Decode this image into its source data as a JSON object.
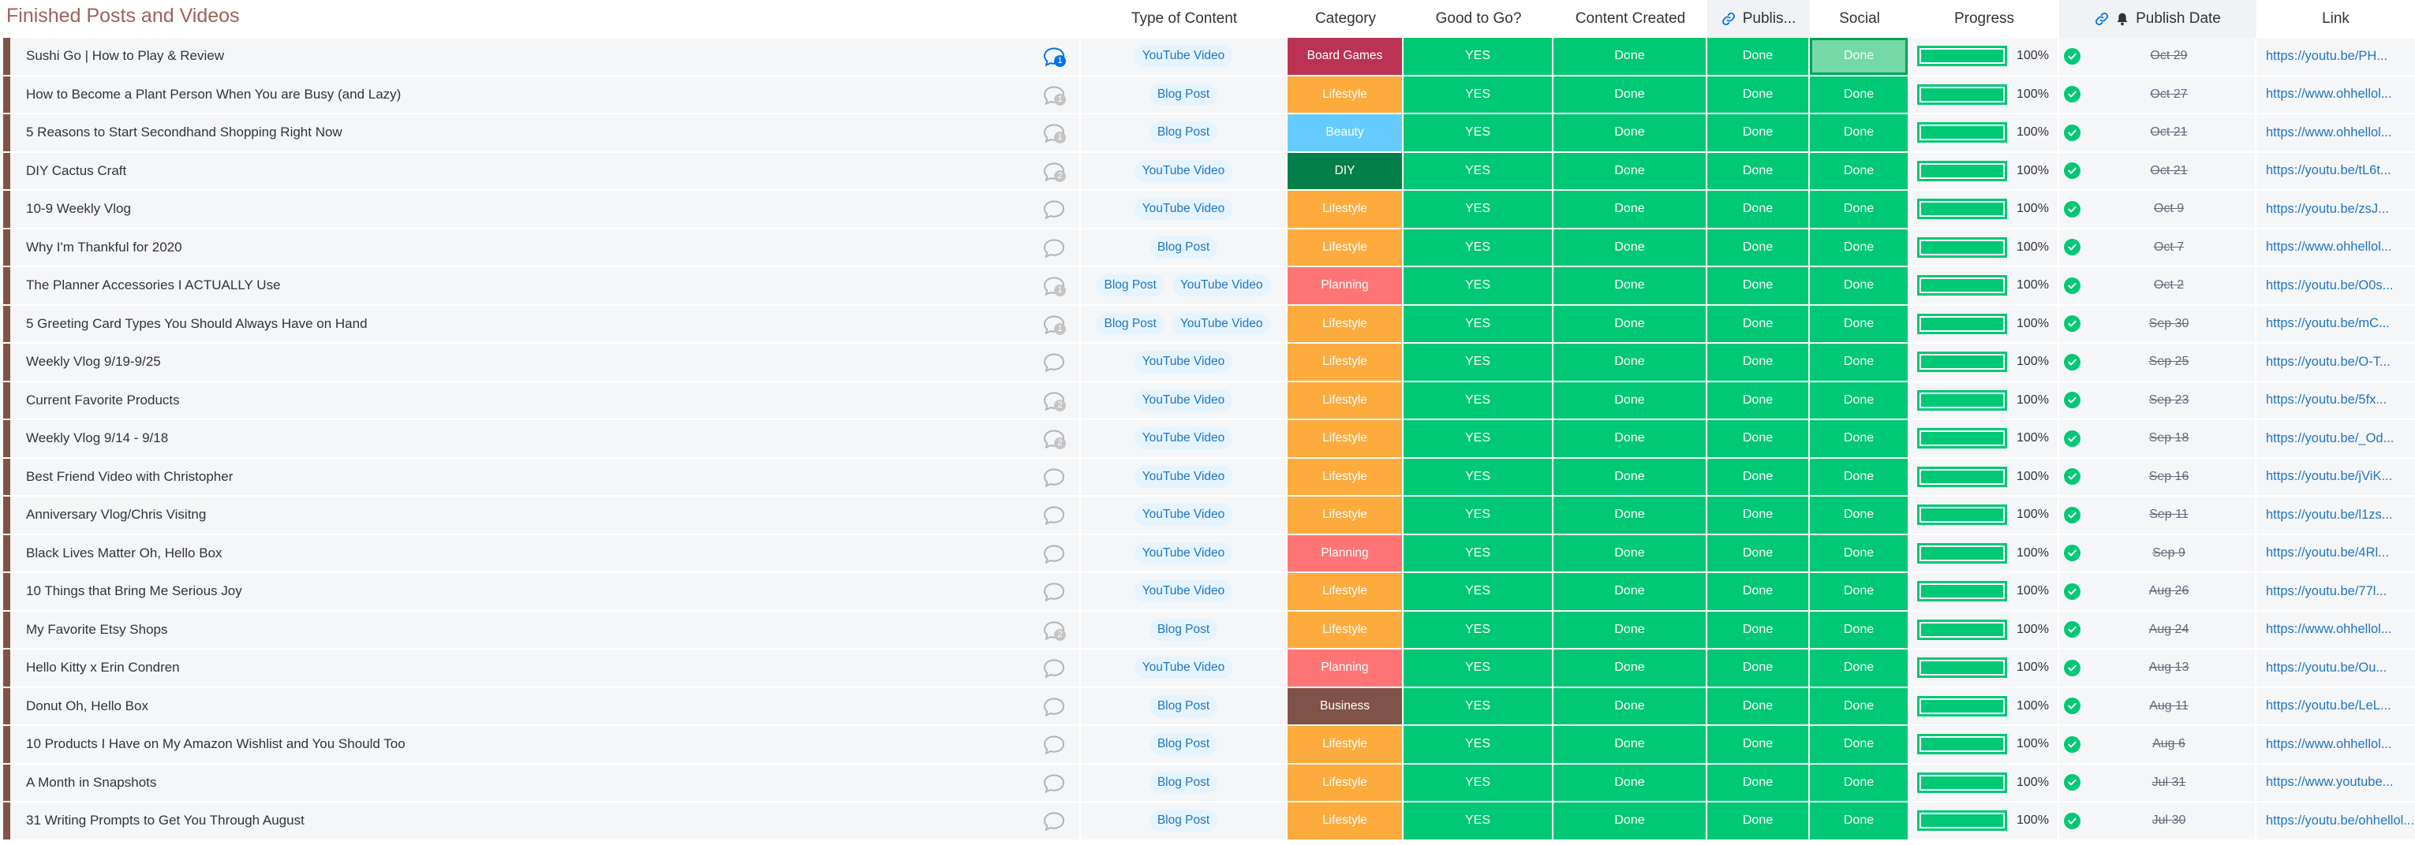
{
  "colors": {
    "group": "#7f5347",
    "status_done": "#00c875",
    "status_done_light": "#74d9a7",
    "chip_bg": "#e5f4ff",
    "chip_text": "#1f76c2",
    "cell_bg": "#f5f6f8",
    "link": "#1f76c2"
  },
  "group": {
    "title": "Finished Posts and Videos"
  },
  "columns": {
    "type": "Type of Content",
    "category": "Category",
    "good": "Good to Go?",
    "created": "Content Created",
    "publish": "Publis...",
    "social": "Social",
    "progress": "Progress",
    "publish_date": "Publish Date",
    "link": "Link"
  },
  "category_colors": {
    "Board Games": "#bb3354",
    "Lifestyle": "#fdab3d",
    "Beauty": "#66ccff",
    "DIY": "#037f4c",
    "Planning": "#ff7575",
    "Business": "#7f5347"
  },
  "rows": [
    {
      "name": "Sushi Go | How to Play & Review",
      "updates": "1",
      "updates_active": true,
      "types": [
        "YouTube Video"
      ],
      "category": "Board Games",
      "good": "YES",
      "created": "Done",
      "publish": "Done",
      "social": "Done",
      "progress": 100,
      "progress_label": "100%",
      "date": "Oct 29",
      "link": "https://youtu.be/PH..."
    },
    {
      "name": "How to Become a Plant Person When You are Busy (and Lazy)",
      "updates": "1",
      "updates_active": false,
      "types": [
        "Blog Post"
      ],
      "category": "Lifestyle",
      "good": "YES",
      "created": "Done",
      "publish": "Done",
      "social": "Done",
      "progress": 100,
      "progress_label": "100%",
      "date": "Oct 27",
      "link": "https://www.ohhellol..."
    },
    {
      "name": "5 Reasons to Start Secondhand Shopping Right Now",
      "updates": "1",
      "updates_active": false,
      "types": [
        "Blog Post"
      ],
      "category": "Beauty",
      "good": "YES",
      "created": "Done",
      "publish": "Done",
      "social": "Done",
      "progress": 100,
      "progress_label": "100%",
      "date": "Oct 21",
      "link": "https://www.ohhellol..."
    },
    {
      "name": "DIY Cactus Craft",
      "updates": "2",
      "updates_active": false,
      "types": [
        "YouTube Video"
      ],
      "category": "DIY",
      "good": "YES",
      "created": "Done",
      "publish": "Done",
      "social": "Done",
      "progress": 100,
      "progress_label": "100%",
      "date": "Oct 21",
      "link": "https://youtu.be/tL6t..."
    },
    {
      "name": "10-9 Weekly Vlog",
      "updates": "",
      "updates_active": false,
      "types": [
        "YouTube Video"
      ],
      "category": "Lifestyle",
      "good": "YES",
      "created": "Done",
      "publish": "Done",
      "social": "Done",
      "progress": 100,
      "progress_label": "100%",
      "date": "Oct 9",
      "link": "https://youtu.be/zsJ..."
    },
    {
      "name": "Why I'm Thankful for 2020",
      "updates": "",
      "updates_active": false,
      "types": [
        "Blog Post"
      ],
      "category": "Lifestyle",
      "good": "YES",
      "created": "Done",
      "publish": "Done",
      "social": "Done",
      "progress": 100,
      "progress_label": "100%",
      "date": "Oct 7",
      "link": "https://www.ohhellol..."
    },
    {
      "name": "The Planner Accessories I ACTUALLY Use",
      "updates": "1",
      "updates_active": false,
      "types": [
        "Blog Post",
        "YouTube Video"
      ],
      "category": "Planning",
      "good": "YES",
      "created": "Done",
      "publish": "Done",
      "social": "Done",
      "progress": 100,
      "progress_label": "100%",
      "date": "Oct 2",
      "link": "https://youtu.be/O0s..."
    },
    {
      "name": "5 Greeting Card Types You Should Always Have on Hand",
      "updates": "1",
      "updates_active": false,
      "types": [
        "Blog Post",
        "YouTube Video"
      ],
      "category": "Lifestyle",
      "good": "YES",
      "created": "Done",
      "publish": "Done",
      "social": "Done",
      "progress": 100,
      "progress_label": "100%",
      "date": "Sep 30",
      "link": "https://youtu.be/mC..."
    },
    {
      "name": "Weekly Vlog 9/19-9/25",
      "updates": "",
      "updates_active": false,
      "types": [
        "YouTube Video"
      ],
      "category": "Lifestyle",
      "good": "YES",
      "created": "Done",
      "publish": "Done",
      "social": "Done",
      "progress": 100,
      "progress_label": "100%",
      "date": "Sep 25",
      "link": "https://youtu.be/O-T..."
    },
    {
      "name": "Current Favorite Products",
      "updates": "2",
      "updates_active": false,
      "types": [
        "YouTube Video"
      ],
      "category": "Lifestyle",
      "good": "YES",
      "created": "Done",
      "publish": "Done",
      "social": "Done",
      "progress": 100,
      "progress_label": "100%",
      "date": "Sep 23",
      "link": "https://youtu.be/5fx..."
    },
    {
      "name": "Weekly Vlog 9/14 - 9/18",
      "updates": "2",
      "updates_active": false,
      "types": [
        "YouTube Video"
      ],
      "category": "Lifestyle",
      "good": "YES",
      "created": "Done",
      "publish": "Done",
      "social": "Done",
      "progress": 100,
      "progress_label": "100%",
      "date": "Sep 18",
      "link": "https://youtu.be/_Od..."
    },
    {
      "name": "Best Friend Video with Christopher",
      "updates": "",
      "updates_active": false,
      "types": [
        "YouTube Video"
      ],
      "category": "Lifestyle",
      "good": "YES",
      "created": "Done",
      "publish": "Done",
      "social": "Done",
      "progress": 100,
      "progress_label": "100%",
      "date": "Sep 16",
      "link": "https://youtu.be/jViK..."
    },
    {
      "name": "Anniversary Vlog/Chris Visitng",
      "updates": "",
      "updates_active": false,
      "types": [
        "YouTube Video"
      ],
      "category": "Lifestyle",
      "good": "YES",
      "created": "Done",
      "publish": "Done",
      "social": "Done",
      "progress": 100,
      "progress_label": "100%",
      "date": "Sep 11",
      "link": "https://youtu.be/l1zs..."
    },
    {
      "name": "Black Lives Matter Oh, Hello Box",
      "updates": "",
      "updates_active": false,
      "types": [
        "YouTube Video"
      ],
      "category": "Planning",
      "good": "YES",
      "created": "Done",
      "publish": "Done",
      "social": "Done",
      "progress": 100,
      "progress_label": "100%",
      "date": "Sep 9",
      "link": "https://youtu.be/4Rl..."
    },
    {
      "name": "10 Things that Bring Me Serious Joy",
      "updates": "",
      "updates_active": false,
      "types": [
        "YouTube Video"
      ],
      "category": "Lifestyle",
      "good": "YES",
      "created": "Done",
      "publish": "Done",
      "social": "Done",
      "progress": 100,
      "progress_label": "100%",
      "date": "Aug 26",
      "link": "https://youtu.be/77l..."
    },
    {
      "name": "My Favorite Etsy Shops",
      "updates": "2",
      "updates_active": false,
      "types": [
        "Blog Post"
      ],
      "category": "Lifestyle",
      "good": "YES",
      "created": "Done",
      "publish": "Done",
      "social": "Done",
      "progress": 100,
      "progress_label": "100%",
      "date": "Aug 24",
      "link": "https://www.ohhellol..."
    },
    {
      "name": "Hello Kitty x Erin Condren",
      "updates": "",
      "updates_active": false,
      "types": [
        "YouTube Video"
      ],
      "category": "Planning",
      "good": "YES",
      "created": "Done",
      "publish": "Done",
      "social": "Done",
      "progress": 100,
      "progress_label": "100%",
      "date": "Aug 13",
      "link": "https://youtu.be/Ou..."
    },
    {
      "name": "Donut Oh, Hello Box",
      "updates": "",
      "updates_active": false,
      "types": [
        "Blog Post"
      ],
      "category": "Business",
      "good": "YES",
      "created": "Done",
      "publish": "Done",
      "social": "Done",
      "progress": 100,
      "progress_label": "100%",
      "date": "Aug 11",
      "link": "https://youtu.be/LeL..."
    },
    {
      "name": "10 Products I Have on My Amazon Wishlist and You Should Too",
      "updates": "",
      "updates_active": false,
      "types": [
        "Blog Post"
      ],
      "category": "Lifestyle",
      "good": "YES",
      "created": "Done",
      "publish": "Done",
      "social": "Done",
      "progress": 100,
      "progress_label": "100%",
      "date": "Aug 6",
      "link": "https://www.ohhellol..."
    },
    {
      "name": "A Month in Snapshots",
      "updates": "",
      "updates_active": false,
      "types": [
        "Blog Post"
      ],
      "category": "Lifestyle",
      "good": "YES",
      "created": "Done",
      "publish": "Done",
      "social": "Done",
      "progress": 100,
      "progress_label": "100%",
      "date": "Jul 31",
      "link": "https://www.youtube..."
    },
    {
      "name": "31 Writing Prompts to Get You Through August",
      "updates": "",
      "updates_active": false,
      "types": [
        "Blog Post"
      ],
      "category": "Lifestyle",
      "good": "YES",
      "created": "Done",
      "publish": "Done",
      "social": "Done",
      "progress": 100,
      "progress_label": "100%",
      "date": "Jul 30",
      "link": "https://youtu.be/ohhellol..."
    }
  ]
}
